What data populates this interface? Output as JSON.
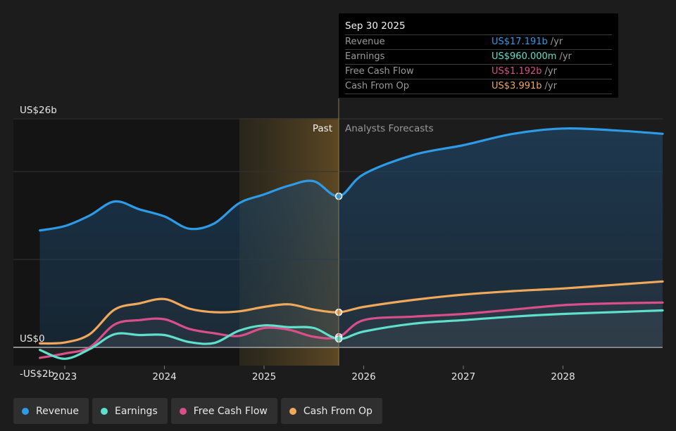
{
  "tooltip": {
    "date": "Sep 30 2025",
    "rows": [
      {
        "label": "Revenue",
        "value": "US$17.191b",
        "unit": "/yr",
        "color": "#2e9be6"
      },
      {
        "label": "Earnings",
        "value": "US$960.000m",
        "unit": "/yr",
        "color": "#5ee0cc"
      },
      {
        "label": "Free Cash Flow",
        "value": "US$1.192b",
        "unit": "/yr",
        "color": "#d94f8a"
      },
      {
        "label": "Cash From Op",
        "value": "US$3.991b",
        "unit": "/yr",
        "color": "#f0a95b"
      }
    ]
  },
  "legend": [
    {
      "label": "Revenue",
      "color": "#2e9be6"
    },
    {
      "label": "Earnings",
      "color": "#5ee0cc"
    },
    {
      "label": "Free Cash Flow",
      "color": "#d94f8a"
    },
    {
      "label": "Cash From Op",
      "color": "#f0a95b"
    }
  ],
  "chart_data": {
    "type": "line",
    "y_tick_labels": [
      "US$26b",
      "US$0",
      "-US$2b"
    ],
    "x_tick_labels": [
      "2023",
      "2024",
      "2025",
      "2026",
      "2027",
      "2028"
    ],
    "ylim": [
      -2,
      26
    ],
    "past_label": "Past",
    "forecast_label": "Analysts Forecasts",
    "divider_x": 2025.75,
    "highlight_range": [
      2024.75,
      2025.75
    ],
    "series": [
      {
        "name": "Revenue",
        "color": "#2e9be6",
        "fill": true,
        "x": [
          2022.75,
          2023.0,
          2023.25,
          2023.5,
          2023.75,
          2024.0,
          2024.25,
          2024.5,
          2024.75,
          2025.0,
          2025.25,
          2025.5,
          2025.75,
          2026.0,
          2026.5,
          2027.0,
          2027.5,
          2028.0,
          2028.5,
          2029.0
        ],
        "y": [
          13.3,
          13.8,
          15.0,
          16.6,
          15.7,
          14.9,
          13.5,
          14.1,
          16.4,
          17.4,
          18.4,
          18.9,
          17.19,
          19.7,
          21.9,
          23.0,
          24.3,
          24.9,
          24.7,
          24.3
        ]
      },
      {
        "name": "Cash From Op",
        "color": "#f0a95b",
        "fill": false,
        "x": [
          2022.75,
          2023.0,
          2023.25,
          2023.5,
          2023.75,
          2024.0,
          2024.25,
          2024.5,
          2024.75,
          2025.0,
          2025.25,
          2025.5,
          2025.75,
          2026.0,
          2026.5,
          2027.0,
          2027.5,
          2028.0,
          2028.5,
          2029.0
        ],
        "y": [
          0.45,
          0.55,
          1.5,
          4.3,
          5.0,
          5.5,
          4.4,
          4.0,
          4.1,
          4.6,
          4.9,
          4.3,
          3.991,
          4.6,
          5.4,
          6.0,
          6.4,
          6.7,
          7.1,
          7.5
        ]
      },
      {
        "name": "Free Cash Flow",
        "color": "#d94f8a",
        "fill": false,
        "x": [
          2022.75,
          2023.0,
          2023.25,
          2023.5,
          2023.75,
          2024.0,
          2024.25,
          2024.5,
          2024.75,
          2025.0,
          2025.25,
          2025.5,
          2025.75,
          2026.0,
          2026.5,
          2027.0,
          2027.5,
          2028.0,
          2028.5,
          2029.0
        ],
        "y": [
          -1.2,
          -0.7,
          0.0,
          2.6,
          3.1,
          3.2,
          2.1,
          1.6,
          1.3,
          2.2,
          2.0,
          1.2,
          1.192,
          3.1,
          3.5,
          3.8,
          4.3,
          4.8,
          5.0,
          5.1
        ]
      },
      {
        "name": "Earnings",
        "color": "#5ee0cc",
        "fill": false,
        "x": [
          2022.75,
          2023.0,
          2023.25,
          2023.5,
          2023.75,
          2024.0,
          2024.25,
          2024.5,
          2024.75,
          2025.0,
          2025.25,
          2025.5,
          2025.75,
          2026.0,
          2026.5,
          2027.0,
          2027.5,
          2028.0,
          2028.5,
          2029.0
        ],
        "y": [
          -0.3,
          -1.3,
          -0.2,
          1.5,
          1.4,
          1.4,
          0.6,
          0.5,
          1.9,
          2.5,
          2.3,
          2.2,
          0.96,
          1.8,
          2.7,
          3.1,
          3.5,
          3.8,
          4.0,
          4.2
        ]
      }
    ]
  }
}
